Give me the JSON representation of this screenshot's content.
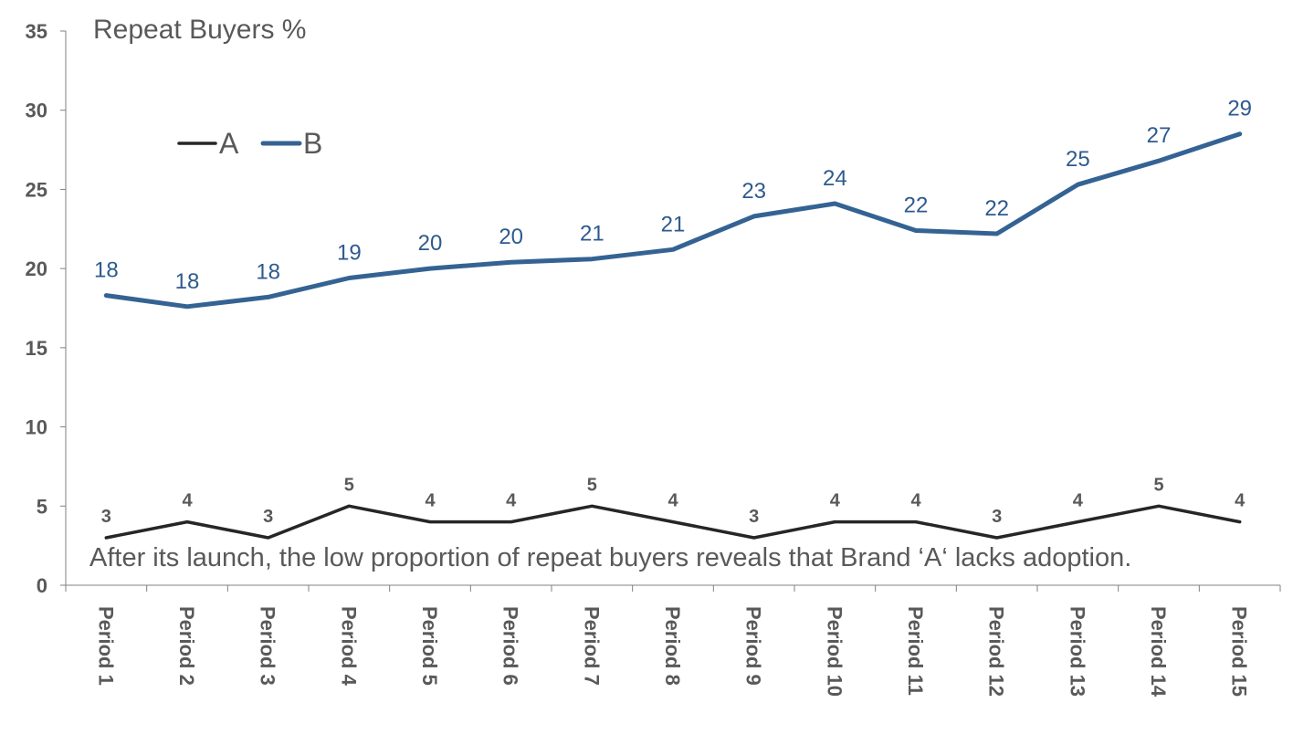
{
  "chart_data": {
    "type": "line",
    "title": "Repeat Buyers %",
    "categories": [
      "Period 1",
      "Period 2",
      "Period 3",
      "Period 4",
      "Period 5",
      "Period 6",
      "Period 7",
      "Period 8",
      "Period 9",
      "Period 10",
      "Period 11",
      "Period 12",
      "Period 13",
      "Period 14",
      "Period 15"
    ],
    "yticks": [
      "0",
      "5",
      "10",
      "15",
      "20",
      "25",
      "30",
      "35"
    ],
    "ylim": [
      0,
      35
    ],
    "grid": false,
    "legend_position": "top-left",
    "series": [
      {
        "name": "A",
        "color": "#262626",
        "values": [
          3,
          4,
          3,
          5,
          4,
          4,
          5,
          4,
          3,
          4,
          4,
          3,
          4,
          5,
          4
        ],
        "labels": [
          "3",
          "4",
          "3",
          "5",
          "4",
          "4",
          "5",
          "4",
          "3",
          "4",
          "4",
          "3",
          "4",
          "5",
          "4"
        ]
      },
      {
        "name": "B",
        "color": "#346393",
        "values": [
          18.3,
          17.6,
          18.2,
          19.4,
          20.0,
          20.4,
          20.6,
          21.2,
          23.3,
          24.1,
          22.4,
          22.2,
          25.3,
          26.8,
          28.5
        ],
        "labels": [
          "18",
          "18",
          "18",
          "19",
          "20",
          "20",
          "21",
          "21",
          "23",
          "24",
          "22",
          "22",
          "25",
          "27",
          "29"
        ]
      }
    ],
    "annotation": "After its launch, the low proportion of repeat buyers reveals that Brand ‘A‘ lacks adoption."
  }
}
